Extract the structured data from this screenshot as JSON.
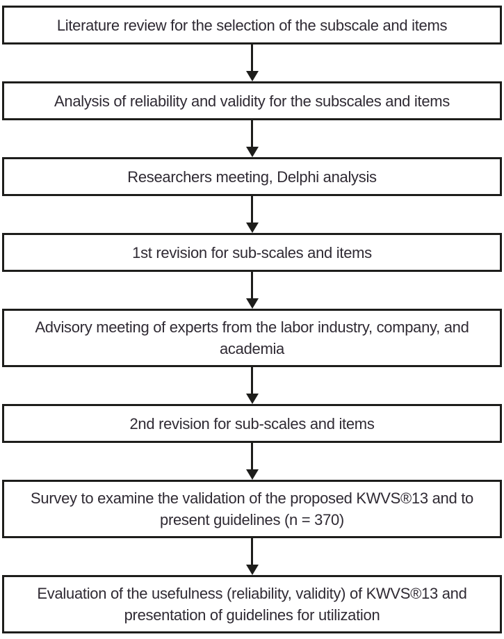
{
  "flowchart": {
    "steps": [
      {
        "label": "Literature review for the selection of the subscale and items"
      },
      {
        "label": "Analysis of reliability and validity for the subscales and items"
      },
      {
        "label": "Researchers meeting, Delphi analysis"
      },
      {
        "label": "1st revision for sub-scales and items"
      },
      {
        "label": "Advisory meeting of experts from the labor industry, company, and\nacademia"
      },
      {
        "label": "2nd revision for sub-scales and items"
      },
      {
        "label": "Survey to examine the validation of the proposed KWVS®13 and to\npresent guidelines (n = 370)"
      },
      {
        "label": "Evaluation of the usefulness (reliability, validity) of KWVS®13 and\npresentation of guidelines for utilization"
      }
    ]
  },
  "colors": {
    "box_border": "#1d1d1b",
    "text": "#2f2a33",
    "arrow": "#1d1d1b",
    "background": "#ffffff"
  }
}
